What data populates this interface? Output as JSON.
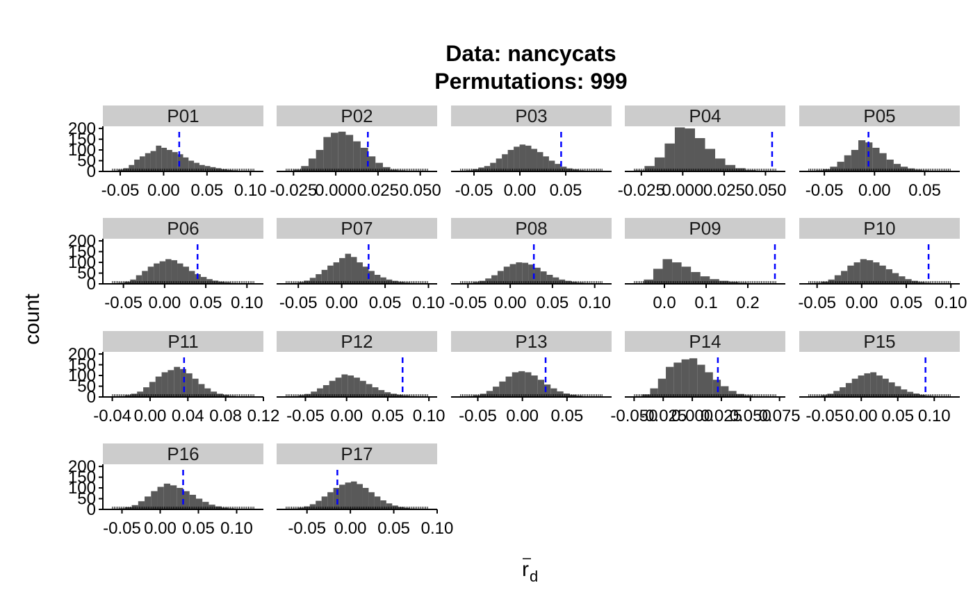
{
  "chart_data": {
    "type": "histogram-facets",
    "title_line1": "Data: nancycats",
    "title_line2": "Permutations: 999",
    "xlabel_main": "r",
    "xlabel_sub": "d",
    "ylabel": "count",
    "y_ticks": [
      0,
      50,
      100,
      150,
      200
    ],
    "ylim": [
      0,
      210
    ],
    "colors": {
      "bar": "#595959",
      "observed_line": "#0000ff",
      "strip": "#cccccc"
    },
    "panels": [
      {
        "name": "P01",
        "xlim": [
          -0.07,
          0.115
        ],
        "x_ticks": [
          -0.05,
          0.0,
          0.05,
          0.1
        ],
        "x_tick_labels": [
          "-0.05",
          "0.00",
          "0.05",
          "0.10"
        ],
        "observed": 0.018,
        "counts": [
          3,
          8,
          15,
          30,
          55,
          70,
          85,
          95,
          120,
          110,
          100,
          90,
          80,
          65,
          50,
          40,
          30,
          25,
          20,
          15,
          10,
          7,
          5,
          3,
          2,
          2
        ]
      },
      {
        "name": "P02",
        "xlim": [
          -0.035,
          0.06
        ],
        "x_ticks": [
          -0.025,
          0.0,
          0.025,
          0.05
        ],
        "x_tick_labels": [
          "-0.025",
          "0.000",
          "0.025",
          "0.050"
        ],
        "observed": 0.019,
        "counts": [
          3,
          8,
          25,
          60,
          100,
          160,
          180,
          185,
          170,
          140,
          110,
          70,
          40,
          20,
          8,
          5,
          3,
          2,
          1
        ]
      },
      {
        "name": "P03",
        "xlim": [
          -0.075,
          0.1
        ],
        "x_ticks": [
          -0.05,
          0.0,
          0.05
        ],
        "x_tick_labels": [
          "-0.05",
          "0.00",
          "0.05"
        ],
        "observed": 0.045,
        "counts": [
          2,
          5,
          10,
          18,
          25,
          40,
          60,
          80,
          100,
          115,
          125,
          120,
          105,
          90,
          70,
          50,
          35,
          22,
          14,
          9,
          5,
          3,
          2,
          1
        ]
      },
      {
        "name": "P04",
        "xlim": [
          -0.035,
          0.062
        ],
        "x_ticks": [
          -0.025,
          0.0,
          0.025,
          0.05
        ],
        "x_tick_labels": [
          "-0.025",
          "0.000",
          "0.025",
          "0.050"
        ],
        "observed": 0.054,
        "counts": [
          5,
          25,
          65,
          130,
          205,
          200,
          155,
          105,
          60,
          30,
          15,
          6,
          3,
          2
        ]
      },
      {
        "name": "P05",
        "xlim": [
          -0.075,
          0.085
        ],
        "x_ticks": [
          -0.05,
          0.0,
          0.05
        ],
        "x_tick_labels": [
          "-0.05",
          "0.00",
          "0.05"
        ],
        "observed": -0.006,
        "counts": [
          2,
          5,
          10,
          22,
          45,
          75,
          100,
          145,
          135,
          110,
          85,
          55,
          35,
          22,
          14,
          8,
          5,
          3,
          2,
          1
        ]
      },
      {
        "name": "P06",
        "xlim": [
          -0.075,
          0.12
        ],
        "x_ticks": [
          -0.05,
          0.0,
          0.05,
          0.1
        ],
        "x_tick_labels": [
          "-0.05",
          "0.00",
          "0.05",
          "0.10"
        ],
        "observed": 0.04,
        "counts": [
          2,
          5,
          10,
          20,
          40,
          60,
          80,
          95,
          105,
          115,
          110,
          95,
          80,
          60,
          45,
          32,
          22,
          15,
          10,
          7,
          4,
          3,
          2,
          1
        ]
      },
      {
        "name": "P07",
        "xlim": [
          -0.075,
          0.11
        ],
        "x_ticks": [
          -0.05,
          0.0,
          0.05,
          0.1
        ],
        "x_tick_labels": [
          "-0.05",
          "0.00",
          "0.05",
          "0.10"
        ],
        "observed": 0.031,
        "counts": [
          2,
          4,
          8,
          15,
          28,
          45,
          65,
          85,
          100,
          120,
          140,
          125,
          100,
          80,
          60,
          42,
          30,
          20,
          14,
          9,
          6,
          4,
          2,
          1
        ]
      },
      {
        "name": "P08",
        "xlim": [
          -0.07,
          0.12
        ],
        "x_ticks": [
          -0.05,
          0.0,
          0.05,
          0.1
        ],
        "x_tick_labels": [
          "-0.05",
          "0.00",
          "0.05",
          "0.10"
        ],
        "observed": 0.028,
        "counts": [
          2,
          4,
          8,
          14,
          25,
          40,
          60,
          80,
          92,
          100,
          98,
          90,
          75,
          58,
          42,
          30,
          20,
          14,
          9,
          6,
          4,
          2,
          1
        ]
      },
      {
        "name": "P09",
        "xlim": [
          -0.095,
          0.29
        ],
        "x_ticks": [
          0.0,
          0.1,
          0.2
        ],
        "x_tick_labels": [
          "0.0",
          "0.1",
          "0.2"
        ],
        "observed": 0.265,
        "counts": [
          3,
          20,
          70,
          115,
          100,
          80,
          55,
          35,
          22,
          14,
          9,
          5,
          3,
          2,
          1
        ]
      },
      {
        "name": "P10",
        "xlim": [
          -0.07,
          0.11
        ],
        "x_ticks": [
          -0.05,
          0.0,
          0.05,
          0.1
        ],
        "x_tick_labels": [
          "-0.05",
          "0.00",
          "0.05",
          "0.10"
        ],
        "observed": 0.075,
        "counts": [
          2,
          5,
          10,
          20,
          40,
          60,
          85,
          100,
          115,
          110,
          100,
          85,
          68,
          50,
          35,
          22,
          14,
          8,
          5,
          3,
          2,
          1
        ]
      },
      {
        "name": "P11",
        "xlim": [
          -0.05,
          0.12
        ],
        "x_ticks": [
          -0.04,
          0.0,
          0.04,
          0.08,
          0.12
        ],
        "x_tick_labels": [
          "-0.04",
          "0.00",
          "0.04",
          "0.08",
          "0.12"
        ],
        "observed": 0.036,
        "counts": [
          2,
          4,
          8,
          15,
          25,
          45,
          70,
          95,
          115,
          125,
          140,
          130,
          110,
          85,
          60,
          40,
          25,
          15,
          9,
          5,
          3,
          2,
          1
        ]
      },
      {
        "name": "P12",
        "xlim": [
          -0.085,
          0.11
        ],
        "x_ticks": [
          -0.05,
          0.0,
          0.05,
          0.1
        ],
        "x_tick_labels": [
          "-0.05",
          "0.00",
          "0.05",
          "0.10"
        ],
        "observed": 0.068,
        "counts": [
          2,
          4,
          8,
          14,
          25,
          40,
          55,
          75,
          90,
          105,
          100,
          90,
          75,
          60,
          45,
          32,
          22,
          15,
          10,
          7,
          4,
          2,
          1
        ]
      },
      {
        "name": "P13",
        "xlim": [
          -0.08,
          0.1
        ],
        "x_ticks": [
          -0.05,
          0.0,
          0.05
        ],
        "x_tick_labels": [
          "-0.05",
          "0.00",
          "0.05"
        ],
        "observed": 0.026,
        "counts": [
          2,
          4,
          8,
          15,
          28,
          48,
          72,
          95,
          115,
          120,
          115,
          100,
          80,
          58,
          40,
          26,
          16,
          10,
          6,
          3,
          2,
          1
        ]
      },
      {
        "name": "P14",
        "xlim": [
          -0.058,
          0.08
        ],
        "x_ticks": [
          -0.05,
          -0.025,
          0.0,
          0.025,
          0.05,
          0.075
        ],
        "x_tick_labels": [
          "-0.050",
          "-0.025",
          "0.000",
          "0.025",
          "0.050",
          "0.075"
        ],
        "observed": 0.022,
        "counts": [
          3,
          12,
          40,
          85,
          140,
          160,
          175,
          180,
          150,
          115,
          80,
          50,
          28,
          14,
          7,
          3,
          2,
          1
        ]
      },
      {
        "name": "P15",
        "xlim": [
          -0.085,
          0.135
        ],
        "x_ticks": [
          -0.05,
          0.0,
          0.05,
          0.1
        ],
        "x_tick_labels": [
          "-0.05",
          "0.00",
          "0.05",
          "0.10"
        ],
        "observed": 0.088,
        "counts": [
          2,
          4,
          8,
          15,
          28,
          45,
          65,
          85,
          100,
          110,
          115,
          100,
          85,
          68,
          50,
          35,
          24,
          16,
          10,
          6,
          4,
          2,
          1
        ]
      },
      {
        "name": "P16",
        "xlim": [
          -0.075,
          0.135
        ],
        "x_ticks": [
          -0.05,
          0.0,
          0.05,
          0.1
        ],
        "x_tick_labels": [
          "-0.05",
          "0.00",
          "0.05",
          "0.10"
        ],
        "observed": 0.03,
        "counts": [
          2,
          5,
          10,
          20,
          38,
          60,
          85,
          105,
          120,
          112,
          100,
          85,
          68,
          50,
          35,
          22,
          14,
          8,
          5,
          3,
          2,
          1
        ]
      },
      {
        "name": "P17",
        "xlim": [
          -0.085,
          0.1
        ],
        "x_ticks": [
          -0.05,
          0.0,
          0.05,
          0.1
        ],
        "x_tick_labels": [
          "-0.05",
          "0.00",
          "0.05",
          "0.10"
        ],
        "observed": -0.015,
        "counts": [
          2,
          4,
          8,
          14,
          24,
          40,
          60,
          80,
          100,
          115,
          125,
          130,
          118,
          100,
          80,
          60,
          42,
          28,
          18,
          11,
          7,
          4,
          2,
          1
        ]
      }
    ]
  }
}
